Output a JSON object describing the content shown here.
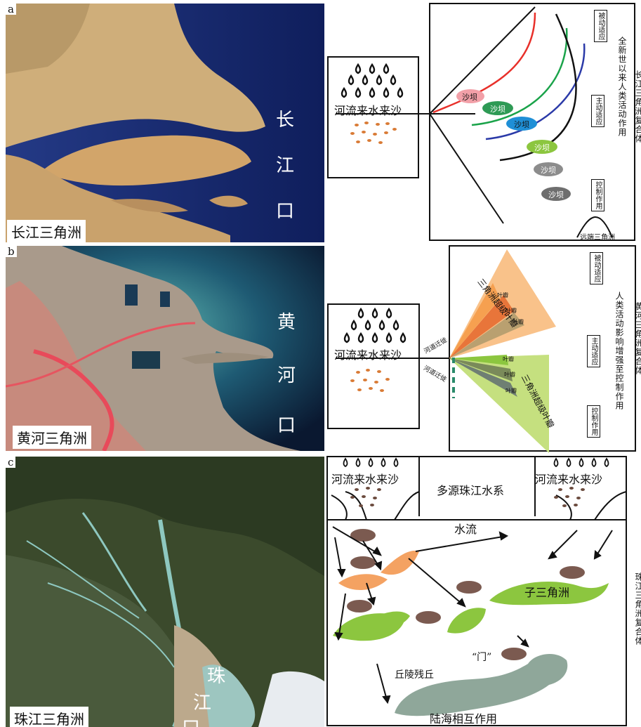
{
  "panels": {
    "a": {
      "letter": "a",
      "caption": "长江三角洲",
      "mouth": [
        "长",
        "江",
        "口"
      ],
      "source_label": "河流来水来沙",
      "bars": [
        "沙坝",
        "沙坝",
        "沙坝",
        "沙坝",
        "沙坝",
        "沙坝"
      ],
      "labels": {
        "passive": "被动适应",
        "active": "主动适应",
        "control": "控制作用",
        "far": "远端三角洲"
      },
      "vertical_title": "全新世以来人类活动作用",
      "side_title": "长江三角洲复合体"
    },
    "b": {
      "letter": "b",
      "caption": "黄河三角洲",
      "mouth": [
        "黄",
        "河",
        "口"
      ],
      "source_label": "河流来水来沙",
      "migration": [
        "河道迁徙",
        "河道迁徙"
      ],
      "upper_lobe": "三角洲超级叶瓣",
      "lower_lobe": "三角洲超级叶瓣",
      "small_lobes": [
        "叶瓣",
        "叶瓣",
        "叶瓣",
        "叶瓣",
        "叶瓣",
        "叶瓣"
      ],
      "labels": {
        "passive": "被动适应",
        "active": "主动适应",
        "control": "控制作用"
      },
      "vertical_title": "人类活动影响增强至控制作用",
      "side_title": "黄河三角洲复合体"
    },
    "c": {
      "letter": "c",
      "caption": "珠江三角洲",
      "mouth": [
        "珠",
        "江",
        "口"
      ],
      "source_left": "河流来水来沙",
      "source_right": "河流来水来沙",
      "system": "多源珠江水系",
      "flow": "水流",
      "sub_delta": "子三角洲",
      "hills": "丘陵残丘",
      "gate": "“门”",
      "bottom": "陆海相互作用",
      "side_title": "珠江三角洲复合体"
    }
  },
  "colors": {
    "red": "#e8302a",
    "green": "#1aa34a",
    "blue": "#2b3aa8",
    "bar_pink": "#f2a0a8",
    "bar_green": "#2e9a55",
    "bar_blue": "#1f8fd6",
    "bar_lime": "#8cc63f",
    "bar_grey": "#8c8c8c",
    "bar_dark": "#6e6e6e",
    "orange_lobe": "#f9c28a",
    "green_lobe": "#c5e07f",
    "sediment": "#d97b36",
    "sediment_brown": "#6b4b3e",
    "orange_bar": "#f4a262",
    "lime_bar": "#8cc63f",
    "grey_island": "#8fa79a",
    "brown_oval": "#7b5a50"
  }
}
